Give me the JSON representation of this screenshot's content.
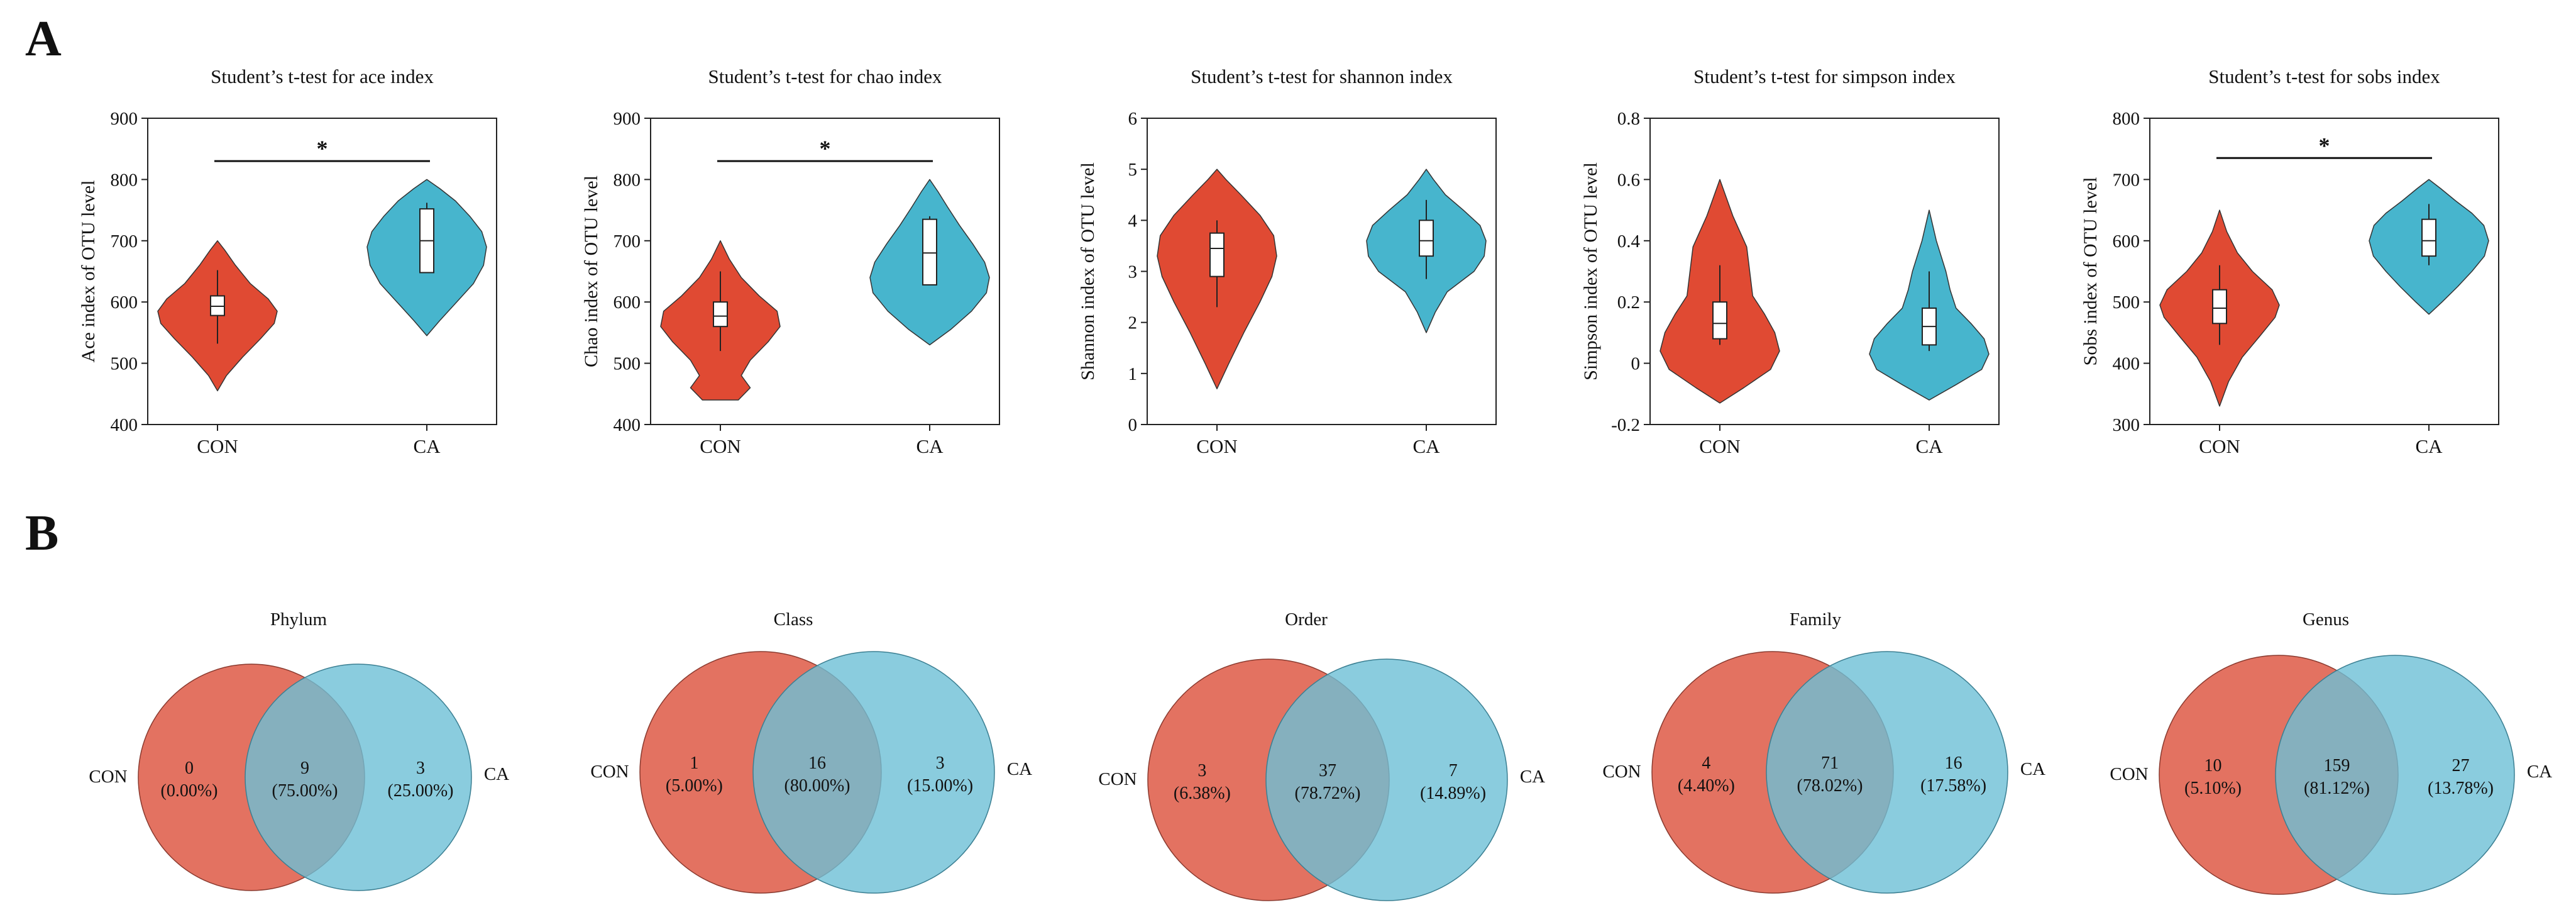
{
  "panel_labels": {
    "a": "A",
    "b": "B"
  },
  "colors": {
    "con": "#e04a33",
    "ca": "#47b5cd",
    "con_venn": "#e26a58",
    "ca_venn": "#6dbfd6",
    "axis": "#222222"
  },
  "chart_data": [
    {
      "type": "violin",
      "title": "Student’s t-test for ace index",
      "ylabel": "Ace index of OTU level",
      "categories": [
        "CON",
        "CA"
      ],
      "ylim": [
        400,
        900
      ],
      "yticks": [
        400,
        500,
        600,
        700,
        800,
        900
      ],
      "tick_labels": [
        "400",
        "500",
        "600",
        "700",
        "800",
        "900"
      ],
      "groups": [
        {
          "name": "CON",
          "min": 455,
          "max": 700,
          "q1": 578,
          "median": 593,
          "q3": 610,
          "whisker_low": 532,
          "whisker_high": 652,
          "density": [
            [
              455,
              0.0
            ],
            [
              480,
              0.15
            ],
            [
              510,
              0.42
            ],
            [
              540,
              0.72
            ],
            [
              565,
              0.95
            ],
            [
              585,
              1.0
            ],
            [
              605,
              0.85
            ],
            [
              630,
              0.55
            ],
            [
              660,
              0.3
            ],
            [
              685,
              0.12
            ],
            [
              700,
              0.0
            ]
          ]
        },
        {
          "name": "CA",
          "min": 545,
          "max": 800,
          "q1": 648,
          "median": 700,
          "q3": 752,
          "whisker_low": 648,
          "whisker_high": 762,
          "density": [
            [
              545,
              0.0
            ],
            [
              570,
              0.22
            ],
            [
              600,
              0.5
            ],
            [
              630,
              0.78
            ],
            [
              660,
              0.95
            ],
            [
              690,
              1.0
            ],
            [
              715,
              0.92
            ],
            [
              740,
              0.72
            ],
            [
              765,
              0.48
            ],
            [
              785,
              0.22
            ],
            [
              800,
              0.0
            ]
          ]
        }
      ],
      "significance": {
        "label": "*",
        "y": 830
      }
    },
    {
      "type": "violin",
      "title": "Student’s t-test for chao index",
      "ylabel": "Chao index of OTU level",
      "categories": [
        "CON",
        "CA"
      ],
      "ylim": [
        400,
        900
      ],
      "yticks": [
        400,
        500,
        600,
        700,
        800,
        900
      ],
      "tick_labels": [
        "400",
        "500",
        "600",
        "700",
        "800",
        "900"
      ],
      "groups": [
        {
          "name": "CON",
          "min": 440,
          "max": 700,
          "q1": 560,
          "median": 577,
          "q3": 600,
          "whisker_low": 520,
          "whisker_high": 650,
          "density": [
            [
              440,
              0.3
            ],
            [
              460,
              0.5
            ],
            [
              480,
              0.35
            ],
            [
              505,
              0.5
            ],
            [
              535,
              0.8
            ],
            [
              560,
              1.0
            ],
            [
              585,
              0.95
            ],
            [
              610,
              0.65
            ],
            [
              640,
              0.35
            ],
            [
              670,
              0.15
            ],
            [
              700,
              0.0
            ]
          ]
        },
        {
          "name": "CA",
          "min": 530,
          "max": 800,
          "q1": 628,
          "median": 680,
          "q3": 735,
          "whisker_low": 628,
          "whisker_high": 740,
          "density": [
            [
              530,
              0.0
            ],
            [
              555,
              0.35
            ],
            [
              585,
              0.7
            ],
            [
              615,
              0.95
            ],
            [
              640,
              1.0
            ],
            [
              665,
              0.92
            ],
            [
              695,
              0.72
            ],
            [
              725,
              0.5
            ],
            [
              755,
              0.3
            ],
            [
              780,
              0.14
            ],
            [
              800,
              0.0
            ]
          ]
        }
      ],
      "significance": {
        "label": "*",
        "y": 830
      }
    },
    {
      "type": "violin",
      "title": "Student’s t-test for shannon index",
      "ylabel": "Shannon index of OTU level",
      "categories": [
        "CON",
        "CA"
      ],
      "ylim": [
        0,
        6
      ],
      "yticks": [
        0,
        1,
        2,
        3,
        4,
        5,
        6
      ],
      "tick_labels": [
        "0",
        "1",
        "2",
        "3",
        "4",
        "5",
        "6"
      ],
      "groups": [
        {
          "name": "CON",
          "min": 0.7,
          "max": 5.0,
          "q1": 2.9,
          "median": 3.45,
          "q3": 3.75,
          "whisker_low": 2.3,
          "whisker_high": 4.0,
          "density": [
            [
              0.7,
              0.0
            ],
            [
              1.2,
              0.2
            ],
            [
              1.8,
              0.45
            ],
            [
              2.4,
              0.72
            ],
            [
              2.9,
              0.92
            ],
            [
              3.3,
              1.0
            ],
            [
              3.7,
              0.95
            ],
            [
              4.1,
              0.72
            ],
            [
              4.5,
              0.4
            ],
            [
              4.8,
              0.15
            ],
            [
              5.0,
              0.0
            ]
          ]
        },
        {
          "name": "CA",
          "min": 1.8,
          "max": 5.0,
          "q1": 3.3,
          "median": 3.6,
          "q3": 4.0,
          "whisker_low": 2.85,
          "whisker_high": 4.4,
          "density": [
            [
              1.8,
              0.0
            ],
            [
              2.2,
              0.15
            ],
            [
              2.6,
              0.35
            ],
            [
              3.0,
              0.8
            ],
            [
              3.3,
              0.97
            ],
            [
              3.6,
              1.0
            ],
            [
              3.9,
              0.9
            ],
            [
              4.2,
              0.62
            ],
            [
              4.5,
              0.32
            ],
            [
              4.8,
              0.12
            ],
            [
              5.0,
              0.0
            ]
          ]
        }
      ]
    },
    {
      "type": "violin",
      "title": "Student’s t-test for simpson index",
      "ylabel": "Simpson index of OTU level",
      "categories": [
        "CON",
        "CA"
      ],
      "ylim": [
        -0.2,
        0.8
      ],
      "yticks": [
        -0.2,
        0,
        0.2,
        0.4,
        0.6,
        0.8
      ],
      "tick_labels": [
        "-0.2",
        "0",
        "0.2",
        "0.4",
        "0.6",
        "0.8"
      ],
      "groups": [
        {
          "name": "CON",
          "min": -0.13,
          "max": 0.6,
          "q1": 0.08,
          "median": 0.13,
          "q3": 0.2,
          "whisker_low": 0.06,
          "whisker_high": 0.32,
          "density": [
            [
              -0.13,
              0.0
            ],
            [
              -0.08,
              0.4
            ],
            [
              -0.02,
              0.85
            ],
            [
              0.04,
              1.0
            ],
            [
              0.1,
              0.92
            ],
            [
              0.16,
              0.75
            ],
            [
              0.22,
              0.55
            ],
            [
              0.3,
              0.5
            ],
            [
              0.38,
              0.45
            ],
            [
              0.48,
              0.22
            ],
            [
              0.6,
              0.0
            ]
          ]
        },
        {
          "name": "CA",
          "min": -0.12,
          "max": 0.5,
          "q1": 0.06,
          "median": 0.12,
          "q3": 0.18,
          "whisker_low": 0.04,
          "whisker_high": 0.3,
          "density": [
            [
              -0.12,
              0.0
            ],
            [
              -0.07,
              0.45
            ],
            [
              -0.02,
              0.88
            ],
            [
              0.03,
              1.0
            ],
            [
              0.08,
              0.92
            ],
            [
              0.13,
              0.7
            ],
            [
              0.18,
              0.45
            ],
            [
              0.24,
              0.35
            ],
            [
              0.3,
              0.28
            ],
            [
              0.4,
              0.12
            ],
            [
              0.5,
              0.0
            ]
          ]
        }
      ]
    },
    {
      "type": "violin",
      "title": "Student’s t-test for sobs index",
      "ylabel": "Sobs index of OTU level",
      "categories": [
        "CON",
        "CA"
      ],
      "ylim": [
        300,
        800
      ],
      "yticks": [
        300,
        400,
        500,
        600,
        700,
        800
      ],
      "tick_labels": [
        "300",
        "400",
        "500",
        "600",
        "700",
        "800"
      ],
      "groups": [
        {
          "name": "CON",
          "min": 330,
          "max": 650,
          "q1": 465,
          "median": 490,
          "q3": 520,
          "whisker_low": 430,
          "whisker_high": 560,
          "density": [
            [
              330,
              0.0
            ],
            [
              370,
              0.15
            ],
            [
              410,
              0.38
            ],
            [
              445,
              0.68
            ],
            [
              475,
              0.93
            ],
            [
              495,
              1.0
            ],
            [
              520,
              0.88
            ],
            [
              550,
              0.55
            ],
            [
              580,
              0.3
            ],
            [
              615,
              0.12
            ],
            [
              650,
              0.0
            ]
          ]
        },
        {
          "name": "CA",
          "min": 480,
          "max": 700,
          "q1": 575,
          "median": 600,
          "q3": 635,
          "whisker_low": 560,
          "whisker_high": 660,
          "density": [
            [
              480,
              0.0
            ],
            [
              500,
              0.22
            ],
            [
              525,
              0.48
            ],
            [
              550,
              0.72
            ],
            [
              575,
              0.93
            ],
            [
              600,
              1.0
            ],
            [
              625,
              0.92
            ],
            [
              645,
              0.72
            ],
            [
              665,
              0.45
            ],
            [
              685,
              0.2
            ],
            [
              700,
              0.0
            ]
          ]
        }
      ],
      "significance": {
        "label": "*",
        "y": 735
      }
    },
    {
      "type": "venn",
      "title": "Phylum",
      "left_label": "CON",
      "right_label": "CA",
      "left_only": {
        "count": "0",
        "pct": "(0.00%)"
      },
      "shared": {
        "count": "9",
        "pct": "(75.00%)"
      },
      "right_only": {
        "count": "3",
        "pct": "(25.00%)"
      }
    },
    {
      "type": "venn",
      "title": "Class",
      "left_label": "CON",
      "right_label": "CA",
      "left_only": {
        "count": "1",
        "pct": "(5.00%)"
      },
      "shared": {
        "count": "16",
        "pct": "(80.00%)"
      },
      "right_only": {
        "count": "3",
        "pct": "(15.00%)"
      }
    },
    {
      "type": "venn",
      "title": "Order",
      "left_label": "CON",
      "right_label": "CA",
      "left_only": {
        "count": "3",
        "pct": "(6.38%)"
      },
      "shared": {
        "count": "37",
        "pct": "(78.72%)"
      },
      "right_only": {
        "count": "7",
        "pct": "(14.89%)"
      }
    },
    {
      "type": "venn",
      "title": "Family",
      "left_label": "CON",
      "right_label": "CA",
      "left_only": {
        "count": "4",
        "pct": "(4.40%)"
      },
      "shared": {
        "count": "71",
        "pct": "(78.02%)"
      },
      "right_only": {
        "count": "16",
        "pct": "(17.58%)"
      }
    },
    {
      "type": "venn",
      "title": "Genus",
      "left_label": "CON",
      "right_label": "CA",
      "left_only": {
        "count": "10",
        "pct": "(5.10%)"
      },
      "shared": {
        "count": "159",
        "pct": "(81.12%)"
      },
      "right_only": {
        "count": "27",
        "pct": "(13.78%)"
      }
    }
  ]
}
